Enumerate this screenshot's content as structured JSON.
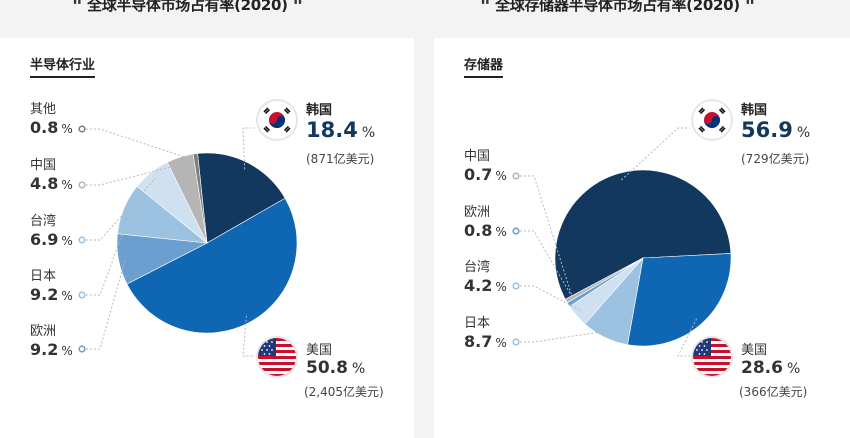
{
  "colors": {
    "dark_navy": "#12385f",
    "blue": "#0f66b2",
    "mid_blue": "#6b9fd0",
    "light_blue": "#9bc2e1",
    "pale_blue": "#cfe0f0",
    "gray": "#b5b5b5",
    "dark_gray": "#7f7f7f"
  },
  "headings": {
    "left": "全球半导体市场占有率(2020)",
    "right": "全球存储器半导体市场占有率(2020)",
    "open_quote": "\"",
    "close_quote": "\""
  },
  "chart_data": [
    {
      "type": "pie",
      "title": "半导体行业",
      "unit": "%",
      "slices": [
        {
          "name": "韩国",
          "value": 18.4,
          "value_text": "18.4",
          "amount": "(871亿美元)",
          "color": "#12385f"
        },
        {
          "name": "美国",
          "value": 50.8,
          "value_text": "50.8",
          "amount": "(2,405亿美元)",
          "color": "#0f66b2"
        },
        {
          "name": "欧洲",
          "value": 9.2,
          "value_text": "9.2",
          "color": "#6b9fd0"
        },
        {
          "name": "日本",
          "value": 9.2,
          "value_text": "9.2",
          "color": "#9bc2e1"
        },
        {
          "name": "台湾",
          "value": 6.9,
          "value_text": "6.9",
          "color": "#cfe0f0"
        },
        {
          "name": "中国",
          "value": 4.8,
          "value_text": "4.8",
          "color": "#b5b5b5"
        },
        {
          "name": "其他",
          "value": 0.8,
          "value_text": "0.8",
          "color": "#7f7f7f"
        }
      ]
    },
    {
      "type": "pie",
      "title": "存储器",
      "unit": "%",
      "slices": [
        {
          "name": "韩国",
          "value": 56.9,
          "value_text": "56.9",
          "amount": "(729亿美元)",
          "color": "#12385f"
        },
        {
          "name": "美国",
          "value": 28.6,
          "value_text": "28.6",
          "amount": "(366亿美元)",
          "color": "#0f66b2"
        },
        {
          "name": "日本",
          "value": 8.7,
          "value_text": "8.7",
          "color": "#9bc2e1"
        },
        {
          "name": "台湾",
          "value": 4.2,
          "value_text": "4.2",
          "color": "#cfe0f0"
        },
        {
          "name": "欧洲",
          "value": 0.8,
          "value_text": "0.8",
          "color": "#6b9fd0"
        },
        {
          "name": "中国",
          "value": 0.7,
          "value_text": "0.7",
          "color": "#b5b5b5"
        }
      ]
    }
  ]
}
